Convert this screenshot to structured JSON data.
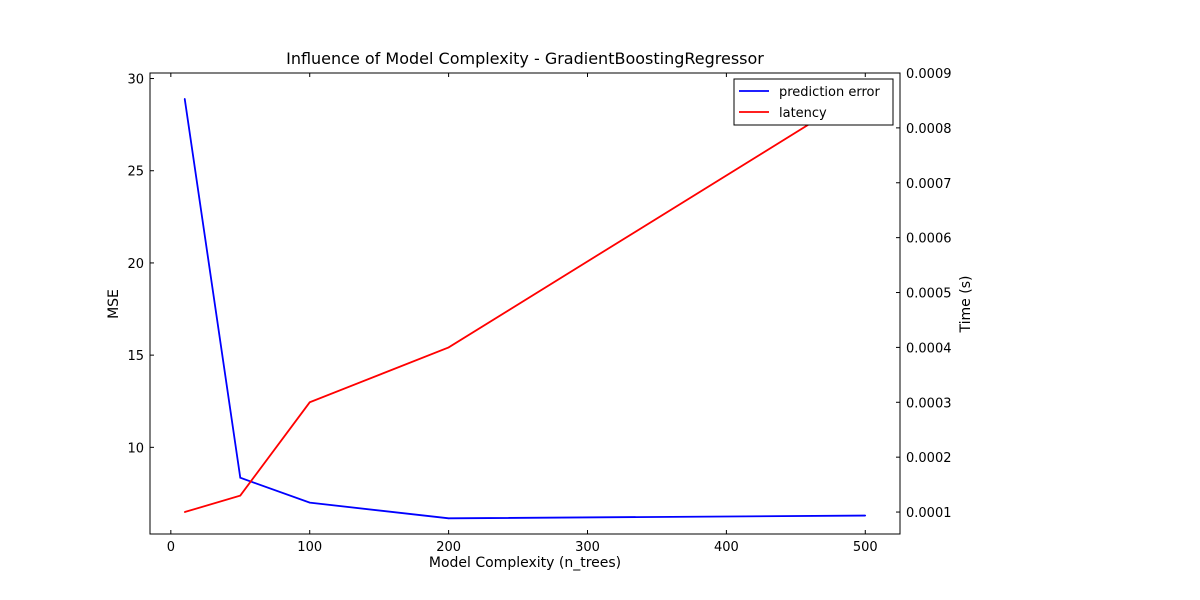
{
  "chart_data": {
    "type": "line",
    "title": "Influence of Model Complexity - GradientBoostingRegressor",
    "xlabel": "Model Complexity (n_trees)",
    "ylabel_left": "MSE",
    "ylabel_right": "Time (s)",
    "x": [
      10,
      50,
      100,
      200,
      500
    ],
    "xlim": [
      -15,
      525
    ],
    "xticks": [
      0,
      100,
      200,
      300,
      400,
      500
    ],
    "ylim_left": [
      5.3,
      30.3
    ],
    "yticks_left": [
      10,
      15,
      20,
      25,
      30
    ],
    "ylim_right": [
      6e-05,
      0.0009
    ],
    "yticks_right": [
      0.0001,
      0.0002,
      0.0003,
      0.0004,
      0.0005,
      0.0006,
      0.0007,
      0.0008,
      0.0009
    ],
    "series": [
      {
        "name": "prediction error",
        "axis": "left",
        "color": "#0000ff",
        "values": [
          28.9,
          8.35,
          7.0,
          6.15,
          6.3
        ]
      },
      {
        "name": "latency",
        "axis": "right",
        "color": "#ff0000",
        "values": [
          0.0001,
          0.00013,
          0.0003,
          0.0004,
          0.00087
        ]
      }
    ],
    "legend": "top-right",
    "grid": false
  }
}
